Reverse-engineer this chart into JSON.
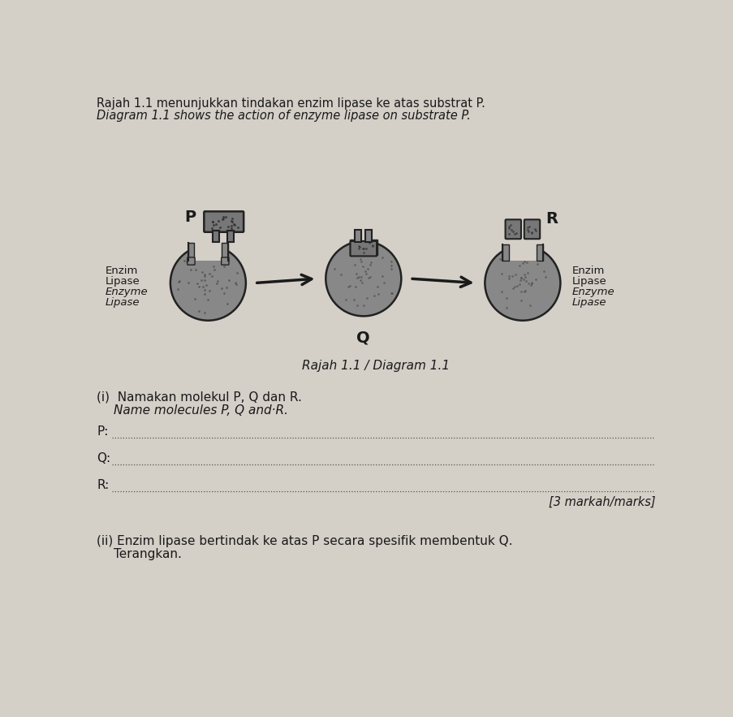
{
  "bg_color": "#d4cfc7",
  "title_line1": "Rajah 1.1 menunjukkan tindakan enzim lipase ke atas substrat P.",
  "title_line2": "Diagram 1.1 shows the action of enzyme lipase on substrate P.",
  "diagram_caption": "Rajah 1.1 / Diagram 1.1",
  "label_P": "P",
  "label_Q": "Q",
  "label_R": "R",
  "question_i": "(i)  Namakan molekul P, Q dan R.",
  "question_i_en": "Name molecules P, Q and·R.",
  "question_ii": "(ii) Enzim lipase bertindak ke atas P secara spesifik membentuk Q.",
  "question_ii2": "Terangkan.",
  "marks": "[3 markah/marks]",
  "text_color": "#1a1a1a",
  "dark_color": "#222222",
  "mid_color": "#666666",
  "light_color": "#999999"
}
